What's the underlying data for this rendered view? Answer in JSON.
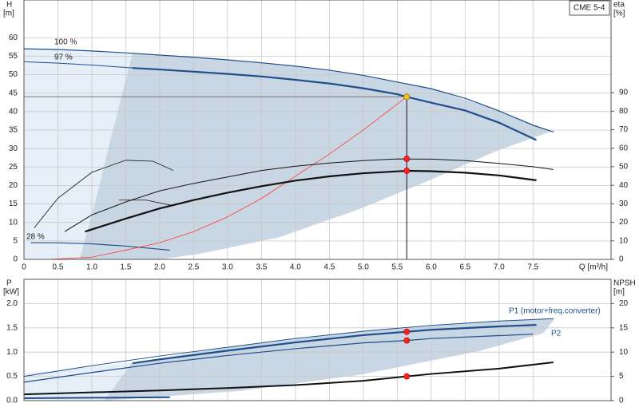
{
  "chart_data": [
    {
      "type": "line",
      "model": "CME 5-4",
      "y_label": "H",
      "y_unit": "[m]",
      "y2_label": "eta",
      "y2_unit": "[%]",
      "x_label": "Q [m³/h]",
      "annotations": [
        "100 %",
        "97 %",
        "28 %"
      ],
      "xlim": [
        0,
        8.65
      ],
      "xticks": [
        0,
        0.5,
        {
          "value": 1,
          "label": "1.0"
        },
        1.5,
        {
          "value": 2,
          "label": "2.0"
        },
        2.5,
        {
          "value": 3,
          "label": "3.0"
        },
        3.5,
        {
          "value": 4,
          "label": "4.0"
        },
        4.5,
        {
          "value": 5,
          "label": "5.0"
        },
        5.5,
        {
          "value": 6,
          "label": "6.0"
        },
        6.5,
        {
          "value": 7,
          "label": "7.0"
        },
        7.5
      ],
      "ylim": [
        0,
        70.2
      ],
      "yticks": [
        0,
        5,
        10,
        15,
        20,
        25,
        30,
        35,
        40,
        45,
        50,
        55,
        60
      ],
      "y2lim": [
        0,
        140
      ],
      "y2ticks": [
        0,
        10,
        20,
        30,
        40,
        50,
        60,
        70,
        80,
        90
      ],
      "grid": true,
      "envelopes": [
        {
          "color": "#e6eef8",
          "x": [
            0,
            1.6,
            1.59,
            1.29,
            1.06,
            0.82,
            0
          ],
          "values": [
            57,
            55.8,
            55,
            33.5,
            16.2,
            0,
            0
          ]
        },
        {
          "color": "#c9d6e4",
          "x": [
            1.6,
            2,
            3,
            4,
            5,
            6,
            7,
            7.8,
            7.82,
            6.94,
            6.0,
            4.94,
            3.76,
            2.59,
            2.0,
            0.82,
            1.06,
            1.29,
            1.59
          ],
          "values": [
            55.8,
            55.3,
            54.0,
            52.3,
            49.8,
            46.2,
            40.2,
            34.5,
            35,
            29.2,
            21.6,
            13.6,
            6,
            1.5,
            0,
            0,
            16.2,
            33.5,
            55
          ]
        }
      ],
      "series": [
        {
          "color": "#1f4e8c",
          "width": 1.2,
          "x": [
            0,
            0.5,
            1,
            1.5,
            2,
            2.5,
            3,
            3.5,
            4,
            4.5,
            5,
            5.5,
            6,
            6.5,
            7,
            7.5,
            7.8
          ],
          "values": [
            57,
            56.8,
            56.4,
            55.9,
            55.3,
            54.7,
            54.0,
            53.2,
            52.3,
            51.2,
            49.8,
            48.0,
            46.2,
            43.6,
            40.2,
            36.3,
            34.5
          ]
        },
        {
          "color": "#1f4e8c",
          "width": 1,
          "x": [
            0,
            0.5,
            1,
            1.6
          ],
          "values": [
            53.5,
            53.1,
            52.6,
            51.8
          ]
        },
        {
          "color": "#1f4e8c",
          "width": 2.2,
          "x": [
            1.6,
            2,
            2.5,
            3,
            3.5,
            4,
            4.5,
            5,
            5.5,
            5.64,
            6,
            6.5,
            7,
            7.55
          ],
          "values": [
            51.8,
            51.4,
            50.8,
            50.2,
            49.5,
            48.6,
            47.6,
            46.3,
            44.7,
            44.0,
            42.4,
            40.3,
            37.0,
            32.3
          ]
        },
        {
          "color": "#1f4e8c",
          "width": 1.2,
          "x": [
            0.1,
            0.5,
            1,
            1.5,
            2.15
          ],
          "values": [
            4.5,
            4.5,
            4.2,
            3.6,
            2.5
          ]
        },
        {
          "color": "#ff3b30",
          "width": 0.8,
          "x": [
            0.35,
            1,
            1.5,
            2,
            2.5,
            3,
            3.5,
            4,
            4.5,
            5,
            5.64
          ],
          "values": [
            0,
            0.6,
            2.5,
            4.5,
            7.5,
            11.5,
            16.5,
            22.5,
            28.5,
            35,
            44
          ]
        },
        {
          "color": "#111111",
          "width": 1,
          "axis": "y2",
          "x": [
            0.6,
            1,
            1.5,
            2,
            2.5,
            3,
            3.5,
            4,
            4.5,
            5,
            5.5,
            6,
            6.5,
            7,
            7.5,
            7.8
          ],
          "values": [
            15,
            24,
            31,
            37,
            41,
            44.5,
            48,
            50.3,
            52,
            53.3,
            54.2,
            54.1,
            53.3,
            51.8,
            50,
            48.5
          ]
        },
        {
          "color": "#111111",
          "width": 2.2,
          "axis": "y2",
          "x": [
            0.9,
            1.5,
            2,
            2.5,
            3,
            3.5,
            4,
            4.5,
            5,
            5.64,
            6,
            6.5,
            7,
            7.55
          ],
          "values": [
            15,
            22,
            27.5,
            32,
            36,
            39.5,
            42.5,
            44.8,
            46.5,
            47.8,
            47.6,
            46.8,
            45.3,
            42.7
          ]
        },
        {
          "color": "#111111",
          "width": 0.8,
          "axis": "y2",
          "x": [
            0.15,
            0.5,
            1,
            1.5,
            1.9,
            2.2
          ],
          "values": [
            17,
            33,
            47,
            53.5,
            53,
            48
          ]
        },
        {
          "color": "#111111",
          "width": 0.8,
          "axis": "y2",
          "x": [
            1.4,
            1.8,
            2.2
          ],
          "values": [
            32,
            32,
            29
          ]
        }
      ],
      "points": [
        {
          "x": 5.64,
          "y": 44,
          "color": "#f5c518"
        },
        {
          "x": 5.64,
          "y": 54.3,
          "axis": "y2",
          "color": "#ff2020"
        },
        {
          "x": 5.64,
          "y": 47.8,
          "axis": "y2",
          "color": "#ff2020"
        }
      ]
    },
    {
      "type": "line",
      "y_label": "P",
      "y_unit": "[kW]",
      "y2_label": "NPSH",
      "y2_unit": "[m]",
      "annotations": [
        "P1 (motor+freq.converter)",
        "P2"
      ],
      "xlim": [
        0,
        8.65
      ],
      "xticks": [
        0,
        0.5,
        1,
        1.5,
        2,
        2.5,
        3,
        3.5,
        4,
        4.5,
        5,
        5.5,
        6,
        6.5,
        7,
        7.5
      ],
      "ylim": [
        0,
        2.5
      ],
      "yticks": [
        {
          "value": 0,
          "label": "0.0"
        },
        0.5,
        {
          "value": 1,
          "label": "1.0"
        },
        1.5,
        {
          "value": 2,
          "label": "2.0"
        }
      ],
      "y2lim": [
        0,
        25
      ],
      "y2ticks": [
        0,
        5,
        10,
        15,
        20
      ],
      "grid": true,
      "envelopes": [
        {
          "color": "#e6eef8",
          "x": [
            0,
            1.59,
            1.18,
            0
          ],
          "values": [
            0.56,
            0.78,
            0,
            0
          ]
        },
        {
          "color": "#c9d6e4",
          "x": [
            1.59,
            3,
            5,
            7,
            7.82,
            7.65,
            6.7,
            4.94,
            3.18,
            1.18
          ],
          "values": [
            0.78,
            1.1,
            1.43,
            1.64,
            1.69,
            1.39,
            1.02,
            0.53,
            0.2,
            0
          ]
        }
      ],
      "series": [
        {
          "color": "#1f4e8c",
          "width": 1,
          "x": [
            0,
            1,
            2,
            3,
            4,
            5,
            6,
            7,
            7.8
          ],
          "values": [
            0.5,
            0.72,
            0.92,
            1.1,
            1.28,
            1.43,
            1.55,
            1.64,
            1.69
          ]
        },
        {
          "color": "#1f4e8c",
          "width": 2.2,
          "x": [
            1.6,
            2,
            3,
            4,
            5,
            5.64,
            6,
            7,
            7.55
          ],
          "values": [
            0.77,
            0.85,
            1.03,
            1.2,
            1.35,
            1.42,
            1.46,
            1.53,
            1.56
          ]
        },
        {
          "color": "#1f4e8c",
          "width": 1.2,
          "x": [
            0,
            1,
            2,
            3,
            4,
            5,
            5.64,
            6,
            7,
            7.5
          ],
          "values": [
            0.38,
            0.58,
            0.77,
            0.93,
            1.07,
            1.19,
            1.24,
            1.28,
            1.34,
            1.37
          ]
        },
        {
          "color": "#1f4e8c",
          "width": 2,
          "x": [
            0,
            2.15
          ],
          "values": [
            0.05,
            0.07
          ]
        },
        {
          "color": "#111111",
          "width": 2,
          "axis": "y2",
          "x": [
            0,
            1,
            2,
            3,
            4,
            5,
            5.64,
            6,
            7,
            7.8
          ],
          "values": [
            1.3,
            1.7,
            2.1,
            2.6,
            3.2,
            4.1,
            5,
            5.5,
            6.6,
            7.9
          ]
        }
      ],
      "points": [
        {
          "x": 5.64,
          "y": 1.42,
          "color": "#ff2020"
        },
        {
          "x": 5.64,
          "y": 1.24,
          "color": "#ff2020"
        },
        {
          "x": 5.64,
          "y": 5,
          "axis": "y2",
          "color": "#ff2020"
        }
      ]
    }
  ]
}
